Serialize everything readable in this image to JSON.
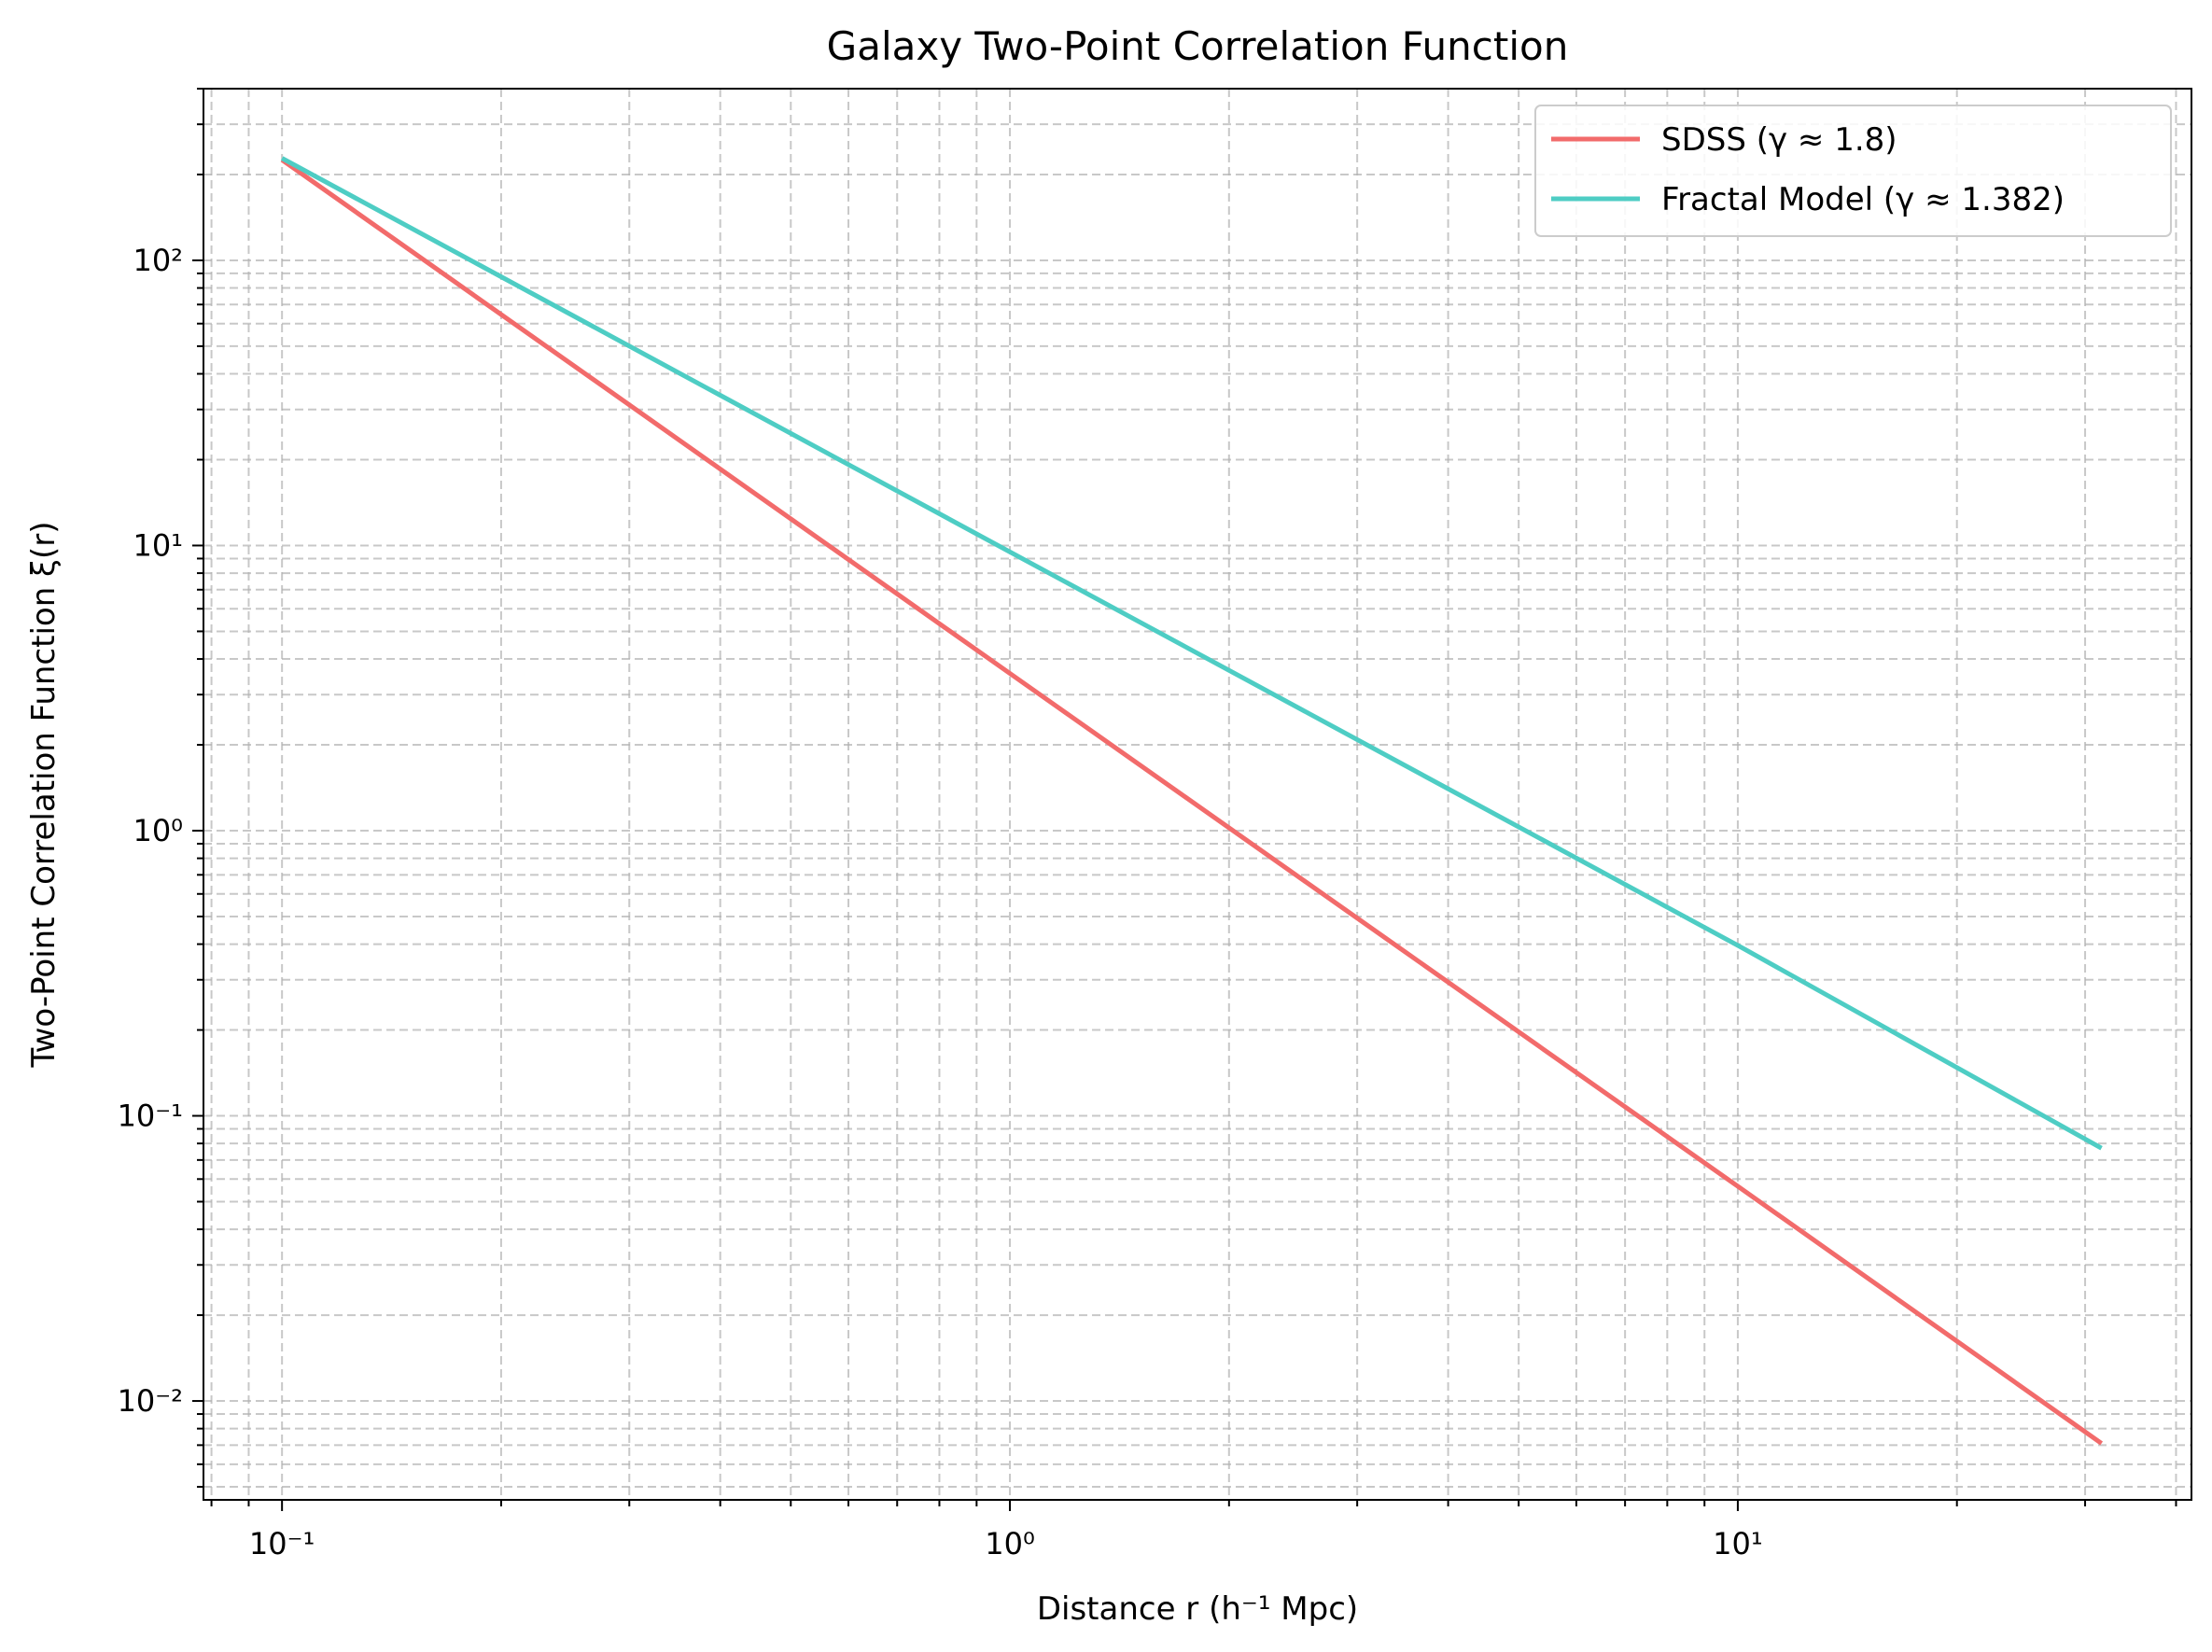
{
  "chart_data": {
    "type": "line",
    "title": "Galaxy Two-Point Correlation Function",
    "xlabel": "Distance r (h⁻¹ Mpc)",
    "ylabel": "Two-Point Correlation Function ξ(r)",
    "xscale": "log",
    "yscale": "log",
    "xlim": [
      0.078,
      42
    ],
    "ylim": [
      0.0045,
      400
    ],
    "grid": true,
    "legend_position": "top-right",
    "x_ticks": [
      0.1,
      1,
      10
    ],
    "x_tick_labels": [
      "10⁻¹",
      "10⁰",
      "10¹"
    ],
    "y_ticks": [
      0.01,
      0.1,
      1,
      10,
      100
    ],
    "y_tick_labels": [
      "10⁻²",
      "10⁻¹",
      "10⁰",
      "10¹",
      "10²"
    ],
    "series": [
      {
        "name": "SDSS (γ ≈ 1.8)",
        "color": "#f26b6b",
        "x": [
          0.1,
          1,
          10,
          31.6
        ],
        "y": [
          225,
          3.56,
          0.0566,
          0.0071
        ]
      },
      {
        "name": "Fractal Model (γ ≈ 1.382)",
        "color": "#4ecdc4",
        "x": [
          0.1,
          1,
          10,
          31.6
        ],
        "y": [
          228,
          9.5,
          0.396,
          0.077
        ]
      }
    ]
  }
}
